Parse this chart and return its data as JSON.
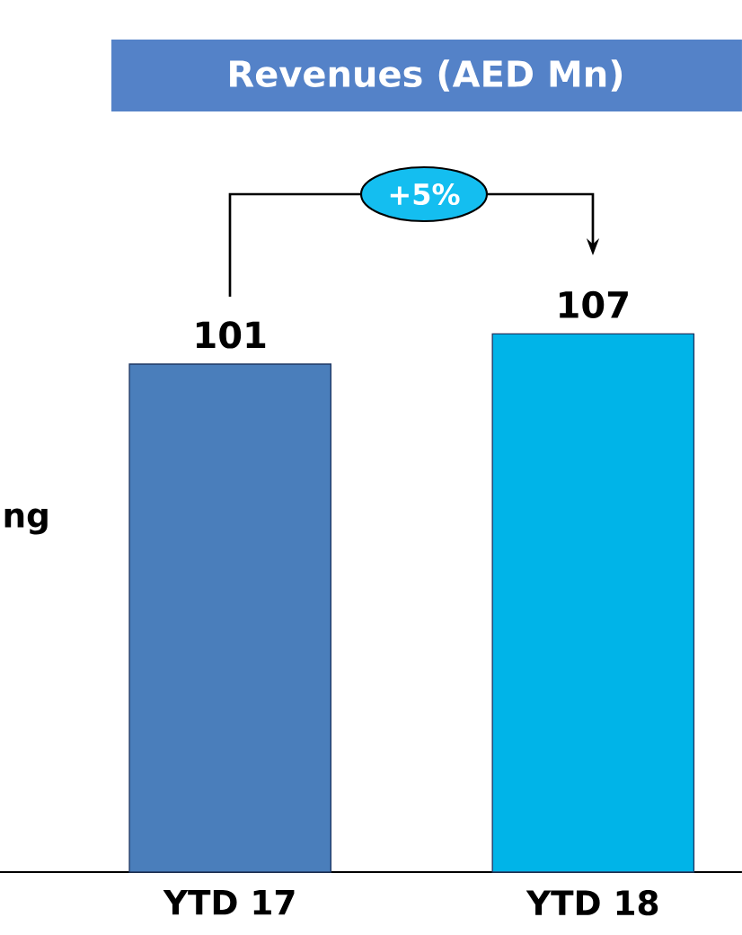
{
  "chart_data": {
    "type": "bar",
    "title": "Revenues (AED Mn)",
    "categories": [
      "YTD 17",
      "YTD 18"
    ],
    "values": [
      101,
      107
    ],
    "colors": [
      "#4a7ebb",
      "#00b4e8"
    ],
    "data_labels": true,
    "annotations": [
      "+5%",
      "ng"
    ]
  }
}
